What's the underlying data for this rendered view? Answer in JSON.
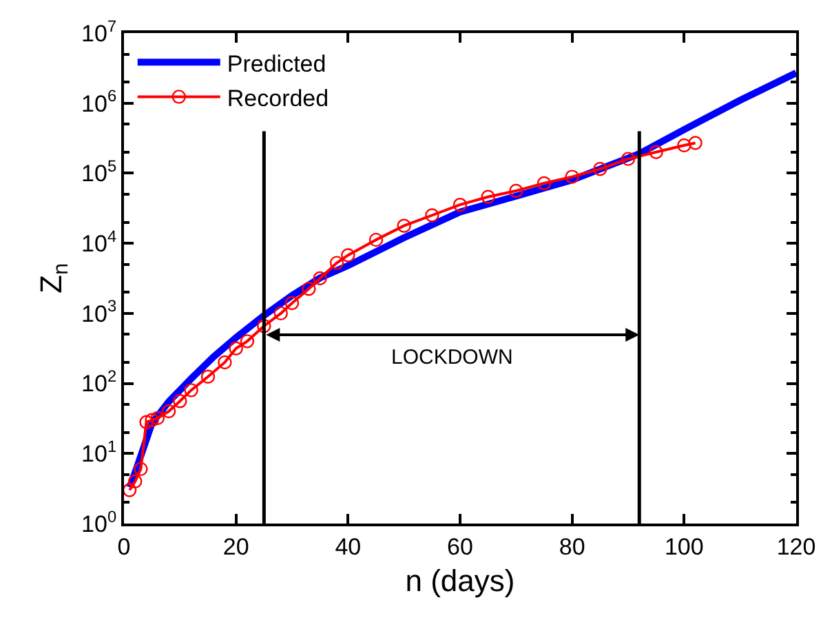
{
  "chart_data": {
    "type": "line",
    "xlabel": "n (days)",
    "ylabel": "Z$_{n}$",
    "log": "y",
    "xlim": [
      0,
      120
    ],
    "xticks": [
      0,
      20,
      40,
      60,
      80,
      100,
      120
    ],
    "ylim": [
      1,
      10000000
    ],
    "yticks": [
      {
        "value": 1,
        "label": "10$^{0}$"
      },
      {
        "value": 10,
        "label": "10$^{1}$"
      },
      {
        "value": 100,
        "label": "10$^{2}$"
      },
      {
        "value": 1000,
        "label": "10$^{3}$"
      },
      {
        "value": 10000,
        "label": "10$^{4}$"
      },
      {
        "value": 100000,
        "label": "10$^{5}$"
      },
      {
        "value": 1000000,
        "label": "10$^{6}$"
      },
      {
        "value": 10000000,
        "label": "10$^{7}$"
      }
    ],
    "grid": false,
    "legend": "top left",
    "series": [
      {
        "name": "Predicted",
        "color": "#0000ff",
        "marker": "none",
        "x": [
          1,
          2,
          5,
          8,
          12,
          16,
          20,
          25,
          30,
          35,
          40,
          50,
          60,
          70,
          80,
          92,
          100,
          110,
          120
        ],
        "values": [
          3.3,
          5.4,
          27,
          55,
          117,
          240,
          450,
          930,
          1800,
          3200,
          4800,
          12000,
          28000,
          47000,
          80000,
          190000,
          420000,
          1100000,
          2700000
        ]
      },
      {
        "name": "Recorded",
        "color": "#ff0000",
        "marker": "circle",
        "x": [
          1,
          2,
          3,
          4,
          5,
          6,
          8,
          10,
          12,
          15,
          18,
          20,
          22,
          25,
          28,
          30,
          33,
          35,
          38,
          40,
          45,
          50,
          55,
          60,
          65,
          70,
          75,
          80,
          85,
          90,
          95,
          100,
          102
        ],
        "values": [
          3,
          4,
          6,
          28,
          30,
          32,
          40,
          56,
          80,
          125,
          200,
          316,
          400,
          660,
          1000,
          1400,
          2240,
          3160,
          5250,
          6760,
          11200,
          17800,
          25100,
          35500,
          46000,
          56000,
          72000,
          89000,
          115000,
          160000,
          200000,
          250000,
          270000
        ]
      }
    ],
    "ref_lines": [
      {
        "axis": "x",
        "value": 25,
        "color": "#000000"
      },
      {
        "axis": "x",
        "value": 92,
        "color": "#000000"
      }
    ],
    "annotations": [
      "LOCKDOWN"
    ]
  }
}
